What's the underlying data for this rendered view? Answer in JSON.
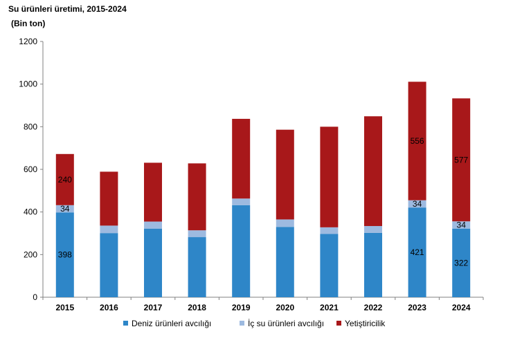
{
  "chart_data": {
    "type": "bar",
    "stacked": true,
    "title": "Su ürünleri üretimi, 2015-2024",
    "subtitle": "(Bin ton)",
    "categories": [
      "2015",
      "2016",
      "2017",
      "2018",
      "2019",
      "2020",
      "2021",
      "2022",
      "2023",
      "2024"
    ],
    "series": [
      {
        "name": "Deniz ürünleri avcılığı",
        "color": "#2E86C8",
        "values": [
          398,
          301,
          322,
          282,
          432,
          330,
          297,
          302,
          421,
          322
        ]
      },
      {
        "name": "İç su ürünleri avcılığı",
        "color": "#9DBAE0",
        "values": [
          34,
          35,
          33,
          32,
          31,
          35,
          31,
          32,
          34,
          34
        ]
      },
      {
        "name": "Yetiştiricilik",
        "color": "#A8181A",
        "values": [
          240,
          253,
          276,
          314,
          374,
          421,
          472,
          515,
          556,
          577
        ]
      }
    ],
    "data_labels": [
      {
        "category": "2015",
        "series": 0,
        "text": "398"
      },
      {
        "category": "2015",
        "series": 1,
        "text": "34"
      },
      {
        "category": "2015",
        "series": 2,
        "text": "240"
      },
      {
        "category": "2023",
        "series": 0,
        "text": "421"
      },
      {
        "category": "2023",
        "series": 1,
        "text": "34"
      },
      {
        "category": "2023",
        "series": 2,
        "text": "556"
      },
      {
        "category": "2024",
        "series": 0,
        "text": "322"
      },
      {
        "category": "2024",
        "series": 1,
        "text": "34"
      },
      {
        "category": "2024",
        "series": 2,
        "text": "577"
      }
    ],
    "ylim": [
      0,
      1200
    ],
    "yticks": [
      0,
      200,
      400,
      600,
      800,
      1000,
      1200
    ],
    "xlabel": "",
    "ylabel": "",
    "grid": false,
    "legend": "bottom"
  }
}
